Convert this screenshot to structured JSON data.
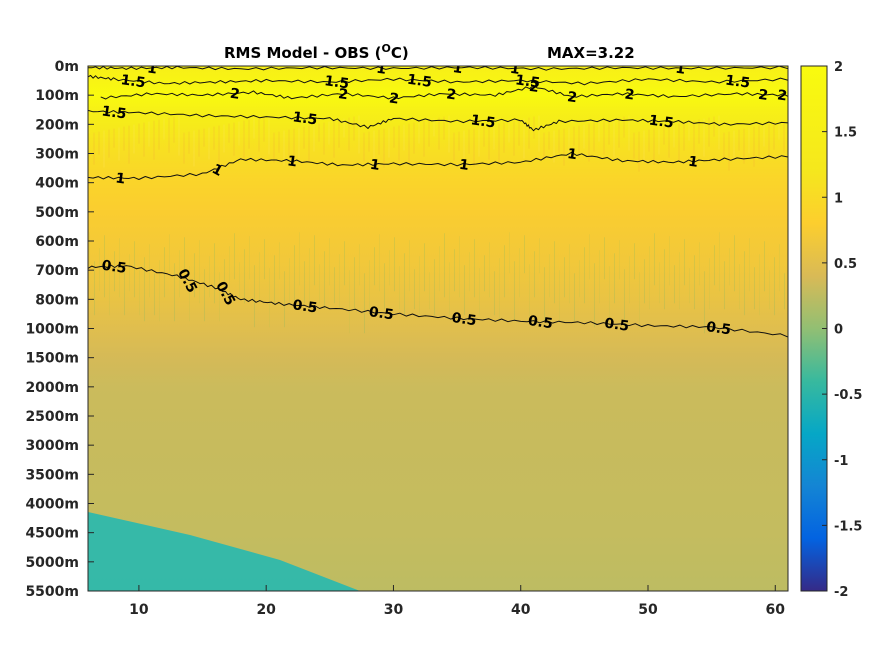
{
  "chart_data": {
    "type": "heatmap",
    "title": "RMS Model - OBS (",
    "title_superscript": "O",
    "title_suffix": "C)",
    "max_text": "MAX=3.22",
    "x_range": [
      6,
      61
    ],
    "x_ticks": [
      10,
      20,
      30,
      40,
      50,
      60
    ],
    "x_tick_labels": [
      "10",
      "20",
      "30",
      "40",
      "50",
      "60"
    ],
    "y_tick_labels": [
      "0m",
      "100m",
      "200m",
      "300m",
      "400m",
      "500m",
      "600m",
      "700m",
      "800m",
      "1000m",
      "1500m",
      "2000m",
      "2500m",
      "3000m",
      "3500m",
      "4000m",
      "4500m",
      "5000m",
      "5500m"
    ],
    "colorbar": {
      "range": [
        -2,
        2
      ],
      "ticks": [
        2,
        1.5,
        1,
        0.5,
        0,
        -0.5,
        -1,
        -1.5,
        -2
      ],
      "tick_labels": [
        "2",
        "1.5",
        "1",
        "0.5",
        "0",
        "-0.5",
        "-1",
        "-1.5",
        "-2"
      ],
      "colormap": "parula"
    },
    "depth_profile": [
      {
        "level": 0,
        "value": 1.5
      },
      {
        "level": 0.5,
        "value": 1.7
      },
      {
        "level": 1,
        "value": 1.95
      },
      {
        "level": 1.5,
        "value": 1.6
      },
      {
        "level": 2,
        "value": 1.35
      },
      {
        "level": 3,
        "value": 1.05
      },
      {
        "level": 4,
        "value": 0.9
      },
      {
        "level": 5,
        "value": 0.78
      },
      {
        "level": 6,
        "value": 0.72
      },
      {
        "level": 7,
        "value": 0.66
      },
      {
        "level": 8,
        "value": 0.58
      },
      {
        "level": 9,
        "value": 0.48
      },
      {
        "level": 10,
        "value": 0.38
      },
      {
        "level": 11,
        "value": 0.32
      },
      {
        "level": 13,
        "value": 0.3
      },
      {
        "level": 16,
        "value": 0.28
      },
      {
        "level": 18,
        "value": 0.24
      }
    ],
    "contours": [
      {
        "value": 1,
        "points": [
          [
            6,
            3.82
          ],
          [
            10,
            3.85
          ],
          [
            15,
            3.7
          ],
          [
            18,
            3.2
          ],
          [
            22,
            3.25
          ],
          [
            26,
            3.4
          ],
          [
            30,
            3.35
          ],
          [
            35,
            3.38
          ],
          [
            40,
            3.3
          ],
          [
            44,
            3.0
          ],
          [
            48,
            3.25
          ],
          [
            52,
            3.3
          ],
          [
            56,
            3.2
          ],
          [
            61,
            3.1
          ]
        ],
        "labels": [
          {
            "x": 8.5,
            "text": "1"
          },
          {
            "x": 16,
            "text": "1"
          },
          {
            "x": 22,
            "text": "1"
          },
          {
            "x": 28.5,
            "text": "1"
          },
          {
            "x": 35.5,
            "text": "1"
          },
          {
            "x": 44,
            "text": "1"
          },
          {
            "x": 53.5,
            "text": "1"
          }
        ]
      },
      {
        "value": 0.5,
        "points": [
          [
            6,
            6.9
          ],
          [
            9,
            6.85
          ],
          [
            13,
            7.2
          ],
          [
            16,
            7.6
          ],
          [
            18,
            8.0
          ],
          [
            21,
            8.15
          ],
          [
            25,
            8.3
          ],
          [
            30,
            8.5
          ],
          [
            35,
            8.65
          ],
          [
            40,
            8.75
          ],
          [
            45,
            8.8
          ],
          [
            50,
            8.9
          ],
          [
            55,
            8.95
          ],
          [
            61,
            9.25
          ]
        ],
        "labels": [
          {
            "x": 8,
            "text": "0.5"
          },
          {
            "x": 13.5,
            "text": "0.5"
          },
          {
            "x": 16.5,
            "text": "0.5"
          },
          {
            "x": 23,
            "text": "0.5"
          },
          {
            "x": 29,
            "text": "0.5"
          },
          {
            "x": 35.5,
            "text": "0.5"
          },
          {
            "x": 41.5,
            "text": "0.5"
          },
          {
            "x": 47.5,
            "text": "0.5"
          },
          {
            "x": 55.5,
            "text": "0.5"
          }
        ]
      },
      {
        "value": 1.5,
        "points": [
          [
            6,
            0.35
          ],
          [
            8,
            0.45
          ],
          [
            12,
            0.6
          ],
          [
            16,
            0.55
          ],
          [
            20,
            0.5
          ],
          [
            25,
            0.55
          ],
          [
            30,
            0.45
          ],
          [
            35,
            0.55
          ],
          [
            40,
            0.5
          ],
          [
            45,
            0.6
          ],
          [
            50,
            0.45
          ],
          [
            55,
            0.55
          ],
          [
            61,
            0.45
          ]
        ],
        "labels": [
          {
            "x": 9.5,
            "text": "1.5"
          },
          {
            "x": 25.5,
            "text": "1.5"
          },
          {
            "x": 32,
            "text": "1.5"
          },
          {
            "x": 40.5,
            "text": "1.5"
          },
          {
            "x": 57,
            "text": "1.5"
          }
        ]
      },
      {
        "value": 1.5,
        "points": [
          [
            6,
            1.55
          ],
          [
            10,
            1.6
          ],
          [
            15,
            1.7
          ],
          [
            20,
            1.75
          ],
          [
            25,
            1.8
          ],
          [
            28,
            2.1
          ],
          [
            30,
            1.8
          ],
          [
            35,
            1.9
          ],
          [
            40,
            1.85
          ],
          [
            41,
            2.2
          ],
          [
            43,
            1.9
          ],
          [
            48,
            1.85
          ],
          [
            52,
            1.9
          ],
          [
            56,
            2.0
          ],
          [
            61,
            1.95
          ]
        ],
        "labels": [
          {
            "x": 8,
            "text": "1.5"
          },
          {
            "x": 23,
            "text": "1.5"
          },
          {
            "x": 37,
            "text": "1.5"
          },
          {
            "x": 51,
            "text": "1.5"
          }
        ]
      },
      {
        "value": 2,
        "points": [
          [
            7,
            1.1
          ],
          [
            11,
            0.95
          ],
          [
            15,
            1.0
          ],
          [
            19,
            0.9
          ],
          [
            22,
            1.1
          ],
          [
            26,
            0.95
          ],
          [
            30,
            1.1
          ],
          [
            34,
            0.95
          ],
          [
            38,
            1.0
          ],
          [
            41,
            0.7
          ],
          [
            44,
            1.05
          ],
          [
            48,
            0.95
          ],
          [
            52,
            1.05
          ],
          [
            57,
            0.95
          ],
          [
            61,
            1.0
          ]
        ],
        "labels": [
          {
            "x": 17.5,
            "text": "2"
          },
          {
            "x": 26,
            "text": "2"
          },
          {
            "x": 30,
            "text": "2"
          },
          {
            "x": 34.5,
            "text": "2"
          },
          {
            "x": 41,
            "text": "2"
          },
          {
            "x": 44,
            "text": "2"
          },
          {
            "x": 48.5,
            "text": "2"
          },
          {
            "x": 59,
            "text": "2"
          },
          {
            "x": 60.5,
            "text": "2"
          }
        ]
      },
      {
        "value": 1,
        "points": [
          [
            6,
            0.05
          ],
          [
            9,
            0.08
          ],
          [
            13,
            0.05
          ],
          [
            18,
            0.1
          ],
          [
            24,
            0.06
          ],
          [
            30,
            0.08
          ],
          [
            36,
            0.05
          ],
          [
            42,
            0.1
          ],
          [
            48,
            0.06
          ],
          [
            54,
            0.08
          ],
          [
            61,
            0.05
          ]
        ],
        "labels": [
          {
            "x": 11,
            "text": "1"
          },
          {
            "x": 29,
            "text": "1"
          },
          {
            "x": 35,
            "text": "1"
          },
          {
            "x": 39.5,
            "text": "1"
          },
          {
            "x": 52.5,
            "text": "1"
          }
        ]
      }
    ]
  }
}
